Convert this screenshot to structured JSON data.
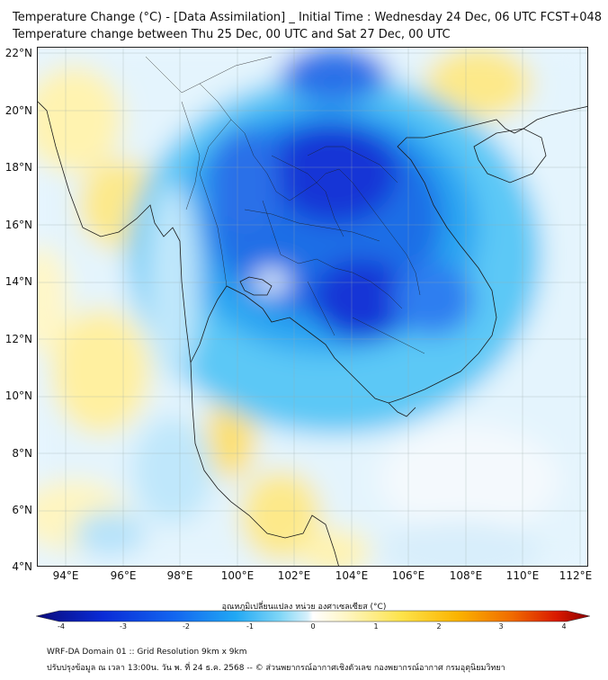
{
  "title": {
    "line1": "Temperature Change (°C) - [Data Assimilation] _ Initial Time : Wednesday 24 Dec, 06 UTC FCST+048",
    "line2": "Temperature change between Thu 25 Dec, 00 UTC and Sat 27 Dec, 00 UTC"
  },
  "axes": {
    "lat_labels": [
      "22°N",
      "20°N",
      "18°N",
      "16°N",
      "14°N",
      "12°N",
      "10°N",
      "8°N",
      "6°N",
      "4°N"
    ],
    "lon_labels": [
      "94°E",
      "96°E",
      "98°E",
      "100°E",
      "102°E",
      "104°E",
      "106°E",
      "108°E",
      "110°E",
      "112°E"
    ],
    "lat_range": [
      4,
      22
    ],
    "lon_range": [
      93,
      112.3
    ],
    "grid": true
  },
  "colorbar": {
    "title": "อุณหภูมิเปลี่ยนแปลง หน่วย องศาเซลเซียส (°C)",
    "ticks": [
      "-4",
      "-3",
      "-2",
      "-1",
      "0",
      "1",
      "2",
      "3",
      "4"
    ],
    "range": [
      -4,
      4
    ],
    "colors": [
      "#0b0b7a",
      "#0a2bd6",
      "#1366f0",
      "#21a8f4",
      "#7fd6f7",
      "#d6f0fb",
      "#ffffff",
      "#fff6c4",
      "#fde34a",
      "#fbb400",
      "#f06a00",
      "#d91900",
      "#8a0000"
    ]
  },
  "footer": {
    "line1": "WRF-DA Domain 01 :: Grid Resolution 9km x 9km",
    "line2": "ปรับปรุงข้อมูล ณ เวลา 13:00น. วัน พ. ที่ 24 ธ.ค. 2568 -- © ส่วนพยากรณ์อากาศเชิงตัวเลข กองพยากรณ์อากาศ กรมอุตุนิยมวิทยา"
  }
}
